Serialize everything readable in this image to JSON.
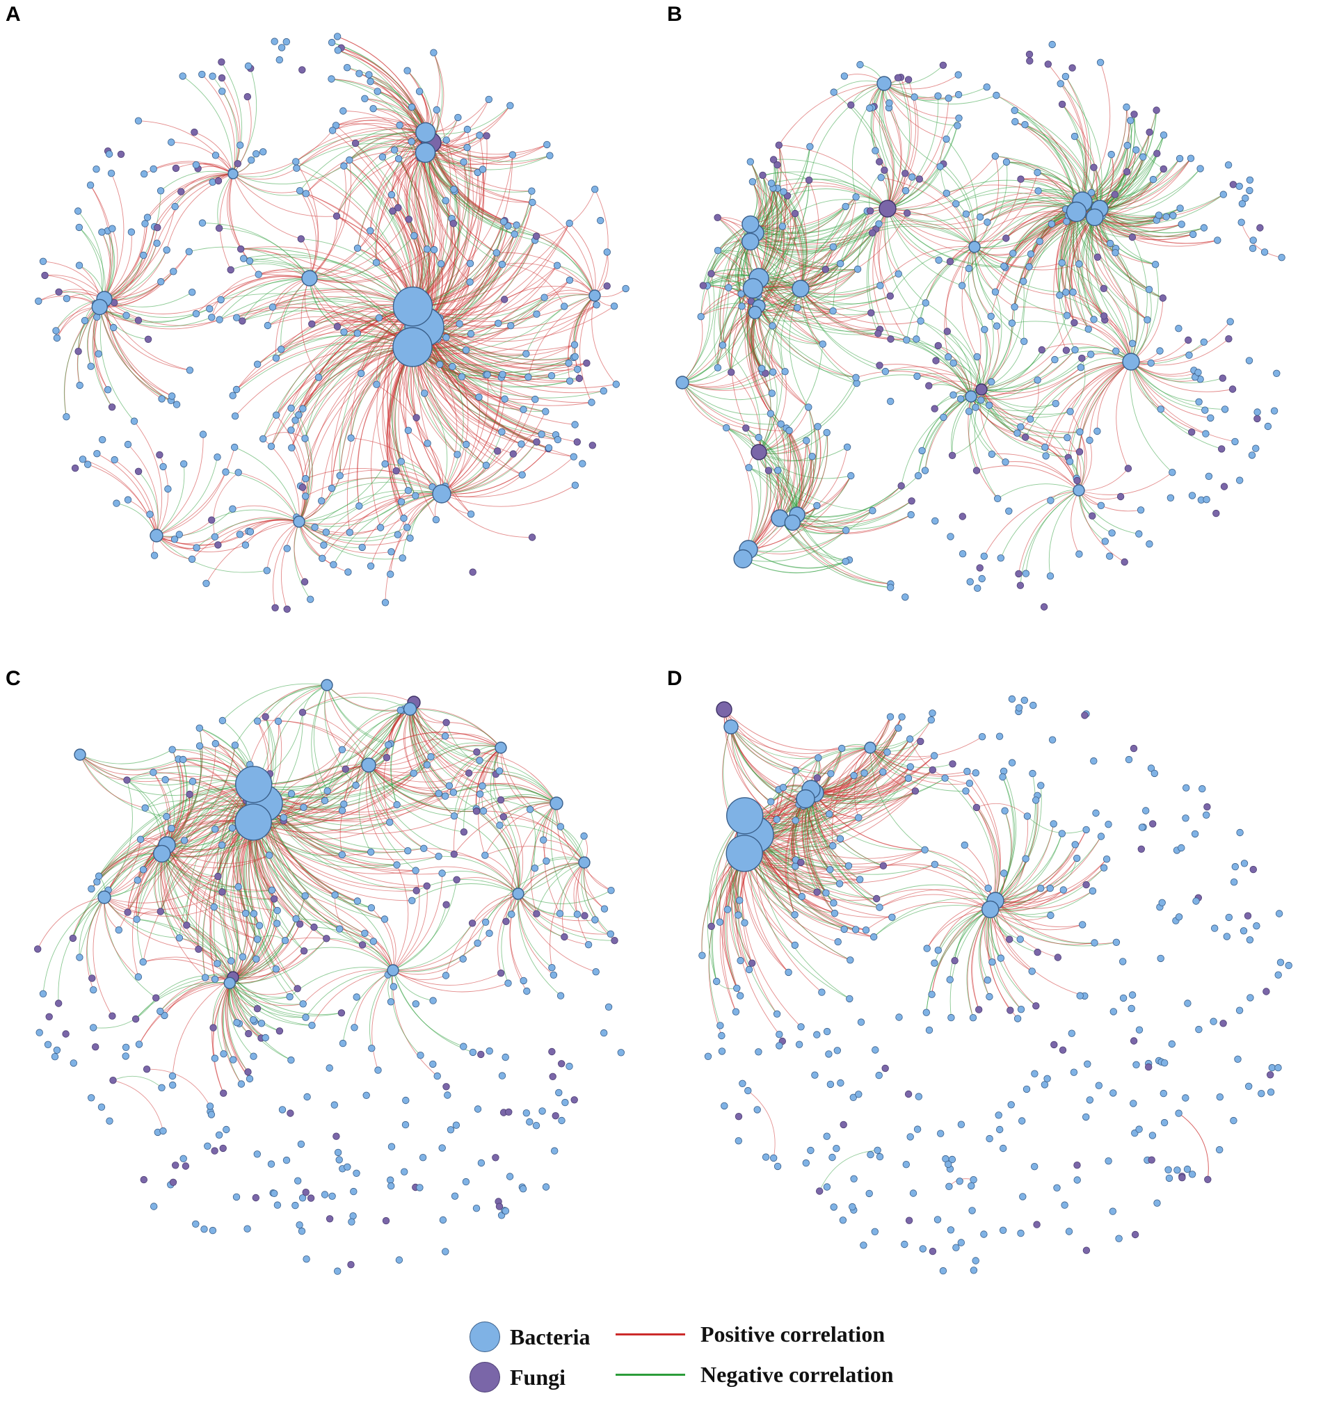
{
  "panels": [
    {
      "label": "A",
      "seed": 11,
      "positive_ratio": 0.72,
      "fungi_ratio": 0.2
    },
    {
      "label": "B",
      "seed": 23,
      "positive_ratio": 0.45,
      "fungi_ratio": 0.28
    },
    {
      "label": "C",
      "seed": 37,
      "positive_ratio": 0.55,
      "fungi_ratio": 0.25
    },
    {
      "label": "D",
      "seed": 49,
      "positive_ratio": 0.6,
      "fungi_ratio": 0.18
    }
  ],
  "colors": {
    "bacteria": "#7fb2e5",
    "fungi": "#7a66a8",
    "node_stroke": "#3a5f8a",
    "positive": "#cc2a2a",
    "negative": "#2c9c3a"
  },
  "legend": {
    "bacteria": "Bacteria",
    "fungi": "Fungi",
    "positive": "Positive correlation",
    "negative": "Negative correlation"
  }
}
